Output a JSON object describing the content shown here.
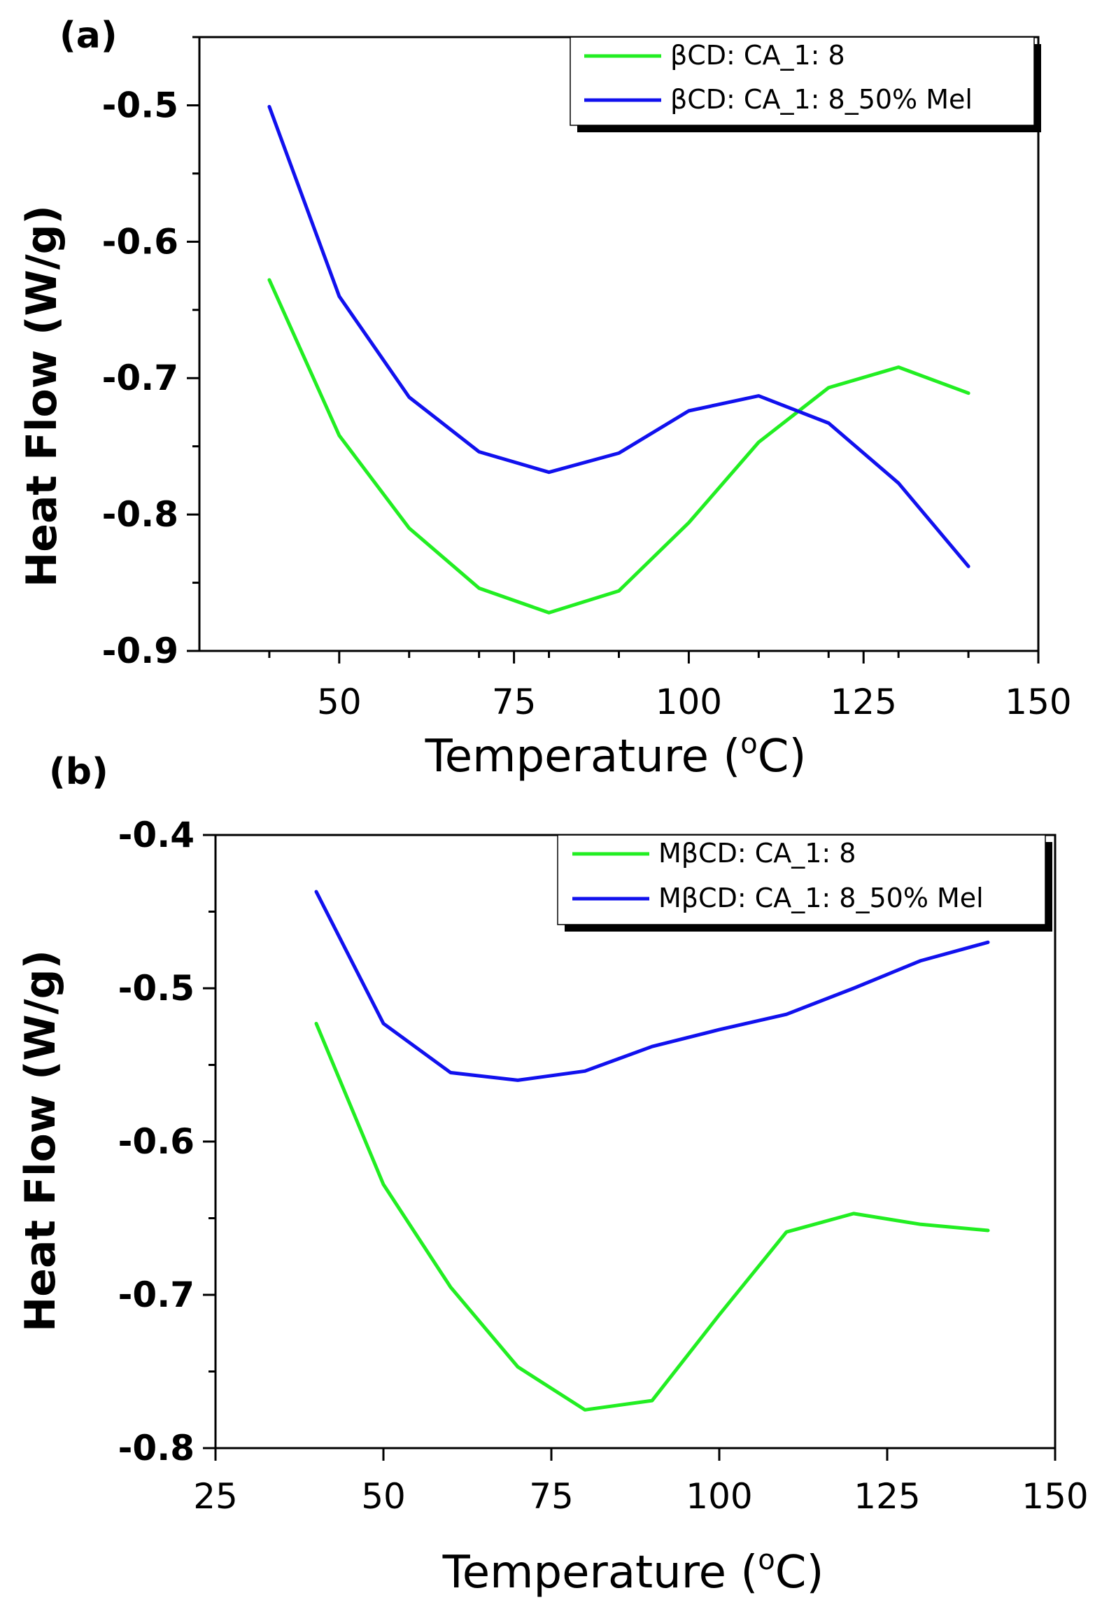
{
  "chart_data": [
    {
      "panel": "(a)",
      "type": "line",
      "xlabel": "Temperature (",
      "xlabel_sup": "o",
      "xlabel_unit": "C)",
      "ylabel": "Heat Flow (W/g)",
      "xlim": [
        30,
        150
      ],
      "ylim": [
        -0.9,
        -0.45
      ],
      "xticks": [
        50,
        75,
        100,
        125,
        150
      ],
      "xticks_minor": [
        40,
        60,
        70,
        80,
        90,
        110,
        120,
        130,
        140
      ],
      "yticks": [
        -0.9,
        -0.8,
        -0.7,
        -0.6,
        -0.5
      ],
      "yticks_minor": [
        -0.85,
        -0.75,
        -0.65,
        -0.55,
        -0.45
      ],
      "xtick_labels": [
        "50",
        "75",
        "100",
        "125",
        "150"
      ],
      "ytick_labels": [
        "-0.9",
        "-0.8",
        "-0.7",
        "-0.6",
        "-0.5"
      ],
      "legend_position": "top-right",
      "series": [
        {
          "name": "βCD: CA_1: 8",
          "color": "#22ee22",
          "x": [
            40,
            50,
            60,
            70,
            80,
            90,
            100,
            110,
            120,
            130,
            140
          ],
          "y": [
            -0.628,
            -0.742,
            -0.81,
            -0.854,
            -0.872,
            -0.856,
            -0.806,
            -0.747,
            -0.707,
            -0.692,
            -0.711
          ]
        },
        {
          "name": "βCD: CA_1: 8_50% Mel",
          "color": "#1111ee",
          "x": [
            40,
            50,
            60,
            70,
            80,
            90,
            100,
            110,
            120,
            130,
            140
          ],
          "y": [
            -0.501,
            -0.64,
            -0.714,
            -0.754,
            -0.769,
            -0.755,
            -0.724,
            -0.713,
            -0.733,
            -0.777,
            -0.838
          ]
        }
      ]
    },
    {
      "panel": "(b)",
      "type": "line",
      "xlabel": "Temperature (",
      "xlabel_sup": "o",
      "xlabel_unit": "C)",
      "ylabel": "Heat Flow (W/g)",
      "xlim": [
        25,
        150
      ],
      "ylim": [
        -0.8,
        -0.4
      ],
      "xticks": [
        25,
        50,
        75,
        100,
        125,
        150
      ],
      "xticks_minor": [],
      "yticks": [
        -0.8,
        -0.7,
        -0.6,
        -0.5,
        -0.4
      ],
      "yticks_minor": [
        -0.75,
        -0.65,
        -0.55,
        -0.45
      ],
      "xtick_labels": [
        "25",
        "50",
        "75",
        "100",
        "125",
        "150"
      ],
      "ytick_labels": [
        "-0.8",
        "-0.7",
        "-0.6",
        "-0.5",
        "-0.4"
      ],
      "legend_position": "top-right",
      "series": [
        {
          "name": "MβCD: CA_1: 8",
          "color": "#22ee22",
          "x": [
            40,
            50,
            60,
            70,
            80,
            90,
            100,
            110,
            120,
            130,
            140
          ],
          "y": [
            -0.523,
            -0.628,
            -0.695,
            -0.747,
            -0.775,
            -0.769,
            -0.713,
            -0.659,
            -0.647,
            -0.654,
            -0.658
          ]
        },
        {
          "name": "MβCD: CA_1: 8_50% Mel",
          "color": "#1111ee",
          "x": [
            40,
            50,
            60,
            70,
            80,
            90,
            100,
            110,
            120,
            130,
            140
          ],
          "y": [
            -0.437,
            -0.523,
            -0.555,
            -0.56,
            -0.554,
            -0.538,
            -0.527,
            -0.517,
            -0.5,
            -0.482,
            -0.47
          ]
        }
      ]
    }
  ]
}
